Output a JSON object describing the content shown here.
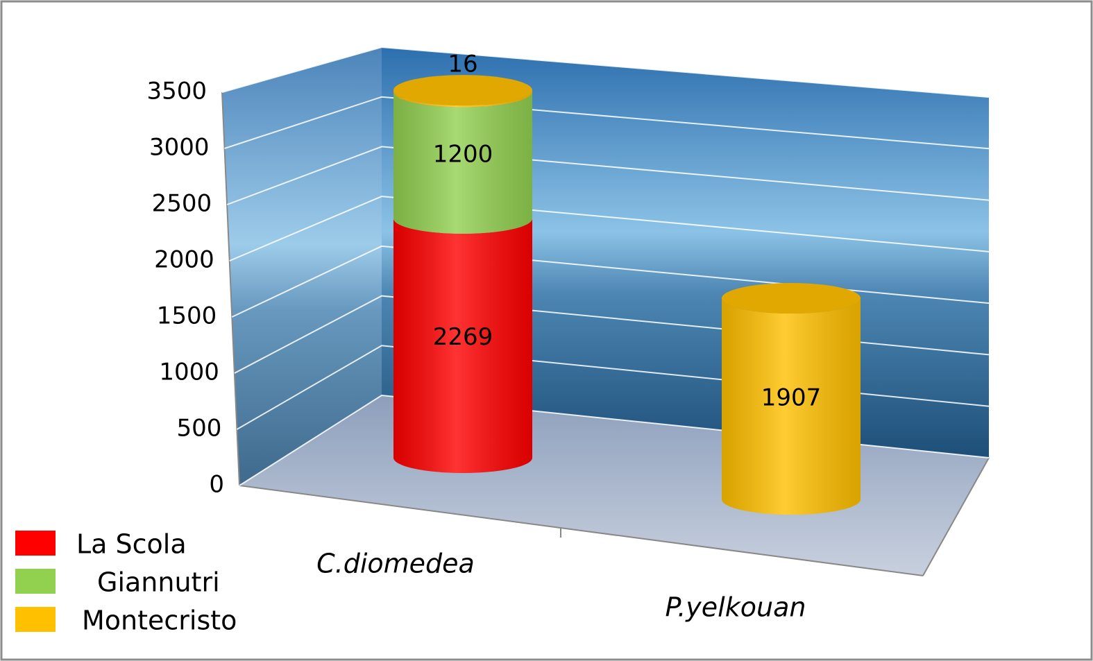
{
  "chart_data": {
    "type": "bar3d-stacked-cylinder",
    "categories": [
      "C.diomedea",
      "P.yelkouan"
    ],
    "series": [
      {
        "name": "La Scola",
        "color": "#ff0000",
        "values": [
          2269,
          null
        ]
      },
      {
        "name": "Giannutri",
        "color": "#92d050",
        "values": [
          1200,
          null
        ]
      },
      {
        "name": "Montecristo",
        "color": "#ffc000",
        "values": [
          16,
          1907
        ]
      }
    ],
    "ylim": [
      0,
      3500
    ],
    "yticks": [
      0,
      500,
      1000,
      1500,
      2000,
      2500,
      3000,
      3500
    ],
    "grid": true,
    "legend": "bottom-left"
  }
}
